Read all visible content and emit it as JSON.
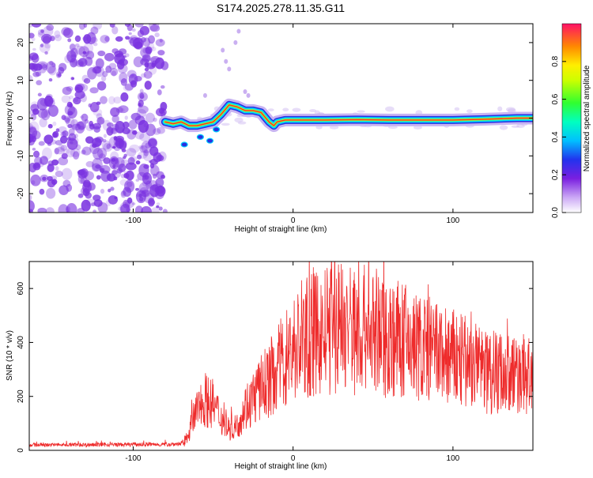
{
  "title": "S174.2025.278.11.35.G11",
  "colors": {
    "snr_line": "#ee2b2b",
    "frame": "#000000",
    "spectrogram_noise": "#7a32e0",
    "ridge_core": "#e83030"
  },
  "chart_data": [
    {
      "type": "heatmap",
      "name": "spectrogram",
      "xlabel": "Height of straight line (km)",
      "ylabel": "Frequency (Hz)",
      "xlim": [
        -165,
        150
      ],
      "ylim": [
        -25,
        25
      ],
      "x_ticks": [
        -100,
        0,
        100
      ],
      "y_ticks": [
        -20,
        -10,
        0,
        10,
        20
      ],
      "ridge": {
        "x": [
          -80,
          -75,
          -70,
          -65,
          -60,
          -55,
          -50,
          -45,
          -40,
          -35,
          -30,
          -25,
          -20,
          -15,
          -12,
          -10,
          -5,
          0,
          20,
          40,
          60,
          80,
          100,
          120,
          140,
          150
        ],
        "y": [
          -1.0,
          -1.5,
          -1.0,
          -2.0,
          -2.0,
          -1.5,
          -1.0,
          1.0,
          3.5,
          3.0,
          2.0,
          2.0,
          1.5,
          -1.0,
          -2.0,
          -1.0,
          -0.5,
          -0.5,
          -0.5,
          -0.4,
          -0.5,
          -0.5,
          -0.5,
          -0.3,
          0.0,
          0.0
        ]
      },
      "colorbar": {
        "label": "Normalized spectral amplitude",
        "range": [
          0,
          1
        ],
        "ticks": [
          "0.0",
          "0.2",
          "0.4",
          "0.6",
          "0.8"
        ]
      }
    },
    {
      "type": "line",
      "name": "snr",
      "xlabel": "Height of straight line (km)",
      "ylabel": "SNR (10 * v/v)",
      "xlim": [
        -165,
        150
      ],
      "ylim": [
        0,
        700
      ],
      "x_ticks": [
        -100,
        0,
        100
      ],
      "y_ticks": [
        0,
        200,
        400,
        600
      ],
      "envelope_x": [
        -165,
        -80,
        -68,
        -60,
        -55,
        -50,
        -45,
        -40,
        -35,
        -30,
        -20,
        -10,
        0,
        10,
        20,
        30,
        40,
        50,
        60,
        70,
        80,
        90,
        100,
        110,
        120,
        130,
        140,
        150
      ],
      "envelope_y": [
        20,
        22,
        25,
        150,
        190,
        170,
        120,
        80,
        90,
        160,
        230,
        300,
        380,
        420,
        440,
        460,
        450,
        440,
        420,
        400,
        380,
        360,
        340,
        320,
        300,
        290,
        280,
        280
      ]
    }
  ]
}
